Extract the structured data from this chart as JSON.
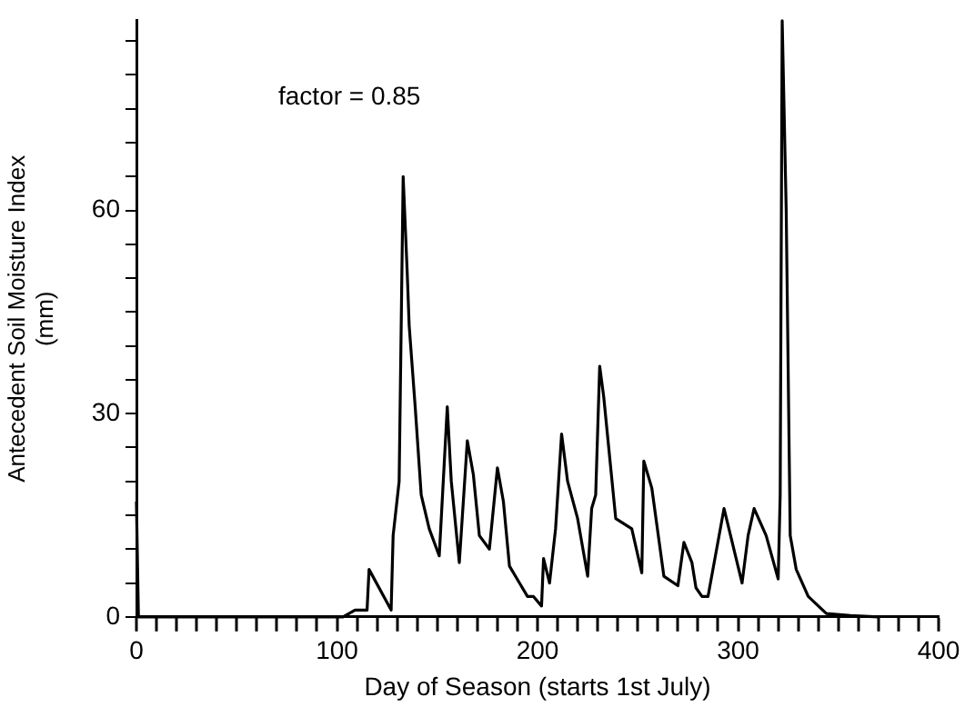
{
  "chart_data": {
    "type": "line",
    "xlabel": "Day of Season (starts 1st July)",
    "ylabel": "Antecedent Soil Moisture Index\n(mm)",
    "annotations": [
      "factor = 0.85"
    ],
    "x": [
      0,
      1,
      103,
      109,
      115,
      116,
      127,
      128,
      131,
      133,
      135,
      136,
      139,
      142,
      146,
      151,
      155,
      157,
      161,
      165,
      168,
      171,
      176,
      180,
      183,
      186,
      191,
      195,
      198,
      202,
      203,
      206,
      209,
      212,
      215,
      220,
      225,
      227,
      229,
      231,
      233,
      239,
      247,
      252,
      253,
      257,
      263,
      270,
      273,
      277,
      279,
      282,
      285,
      293,
      302,
      305,
      308,
      314,
      320,
      321,
      322,
      324,
      326,
      329,
      335,
      344,
      356,
      370
    ],
    "series": [
      {
        "color": "#000000",
        "values": [
          17,
          0,
          0,
          1,
          1,
          7,
          1,
          12,
          20,
          65,
          51,
          43,
          31,
          18,
          13,
          9,
          31,
          20,
          8,
          26,
          21,
          12,
          10,
          22,
          17,
          7.5,
          5,
          3,
          3,
          1.6,
          8.6,
          5,
          13,
          27,
          20,
          14.5,
          6,
          16,
          18,
          37,
          32.5,
          14.5,
          13,
          6.5,
          23,
          19,
          6,
          4.6,
          11,
          8,
          4.3,
          3,
          3,
          16,
          5,
          12,
          16,
          12,
          5.6,
          18,
          88,
          60,
          12,
          7,
          3,
          0.5,
          0.2,
          0
        ]
      }
    ],
    "xlim": [
      0,
      400
    ],
    "ylim": [
      0,
      88
    ],
    "xticks": [
      0,
      {
        "value": 10,
        "label": null
      },
      {
        "value": 20,
        "label": null
      },
      {
        "value": 30,
        "label": null
      },
      {
        "value": 40,
        "label": null
      },
      {
        "value": 50,
        "label": null
      },
      {
        "value": 60,
        "label": null
      },
      {
        "value": 70,
        "label": null
      },
      {
        "value": 80,
        "label": null
      },
      {
        "value": 90,
        "label": null
      },
      100,
      {
        "value": 110,
        "label": null
      },
      {
        "value": 120,
        "label": null
      },
      {
        "value": 130,
        "label": null
      },
      {
        "value": 140,
        "label": null
      },
      {
        "value": 150,
        "label": null
      },
      {
        "value": 160,
        "label": null
      },
      {
        "value": 170,
        "label": null
      },
      {
        "value": 180,
        "label": null
      },
      {
        "value": 190,
        "label": null
      },
      200,
      {
        "value": 210,
        "label": null
      },
      {
        "value": 220,
        "label": null
      },
      {
        "value": 230,
        "label": null
      },
      {
        "value": 240,
        "label": null
      },
      {
        "value": 250,
        "label": null
      },
      {
        "value": 260,
        "label": null
      },
      {
        "value": 270,
        "label": null
      },
      {
        "value": 280,
        "label": null
      },
      {
        "value": 290,
        "label": null
      },
      300,
      {
        "value": 310,
        "label": null
      },
      {
        "value": 320,
        "label": null
      },
      {
        "value": 330,
        "label": null
      },
      {
        "value": 340,
        "label": null
      },
      {
        "value": 350,
        "label": null
      },
      {
        "value": 360,
        "label": null
      },
      {
        "value": 370,
        "label": null
      },
      {
        "value": 380,
        "label": null
      },
      {
        "value": 390,
        "label": null
      },
      400
    ],
    "yticks": [
      0,
      {
        "value": 5,
        "label": null
      },
      {
        "value": 10,
        "label": null
      },
      {
        "value": 15,
        "label": null
      },
      {
        "value": 20,
        "label": null
      },
      {
        "value": 25,
        "label": null
      },
      30,
      {
        "value": 35,
        "label": null
      },
      {
        "value": 40,
        "label": null
      },
      {
        "value": 45,
        "label": null
      },
      {
        "value": 50,
        "label": null
      },
      {
        "value": 55,
        "label": null
      },
      60,
      {
        "value": 65,
        "label": null
      },
      {
        "value": 70,
        "label": null
      },
      {
        "value": 75,
        "label": null
      },
      {
        "value": 80,
        "label": null
      },
      {
        "value": 85,
        "label": null
      }
    ],
    "grid": false,
    "legend": false,
    "marker": "none",
    "line_style": "solid"
  }
}
